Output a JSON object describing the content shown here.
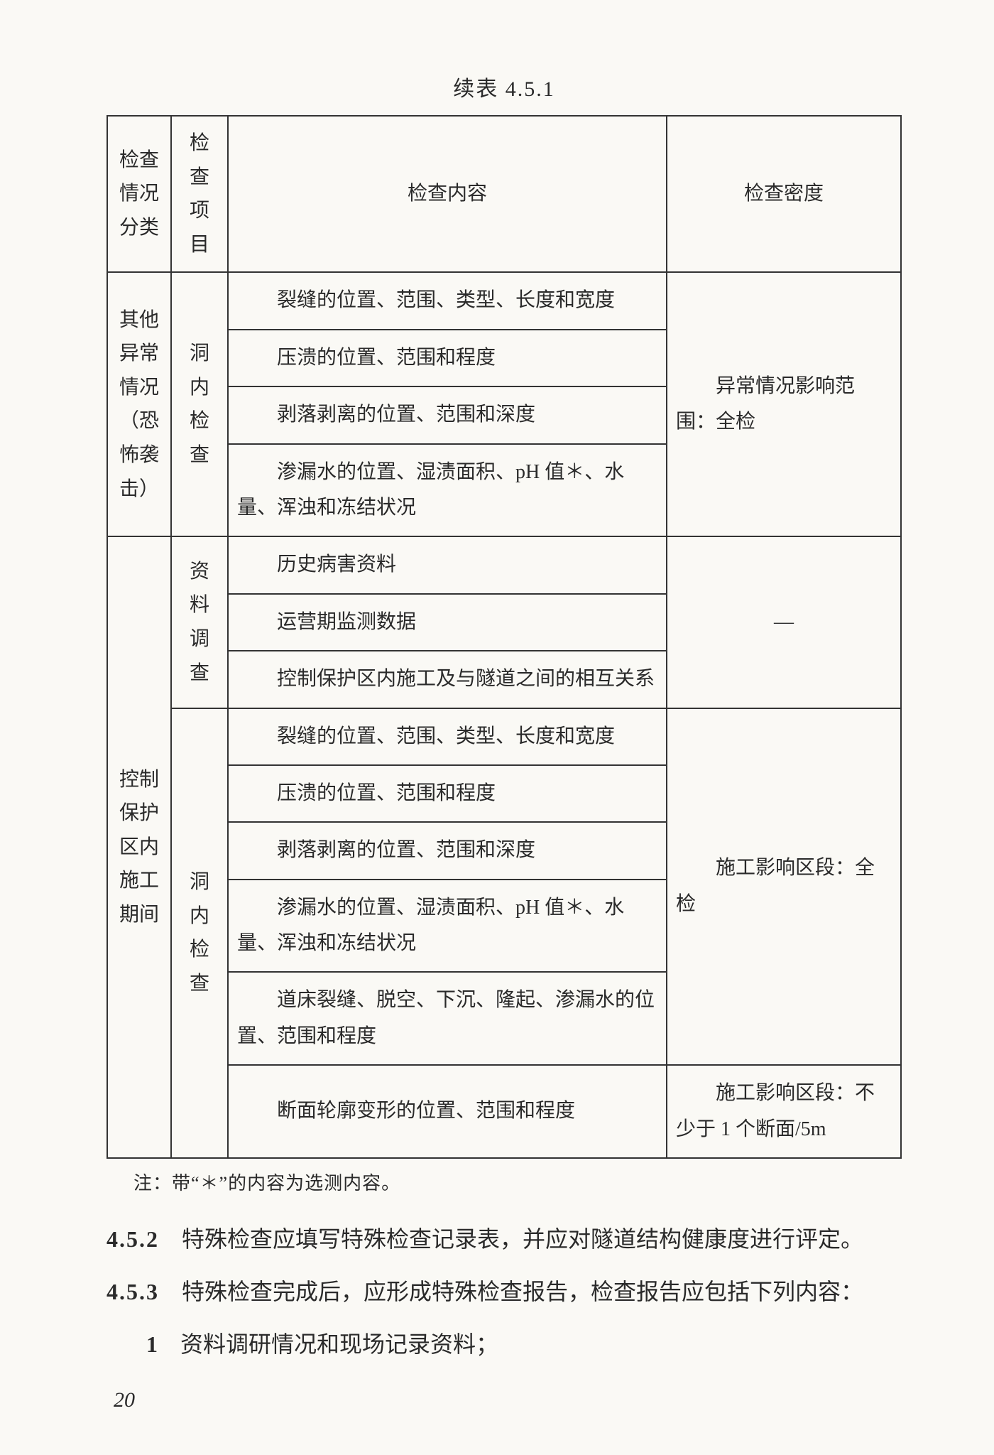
{
  "table": {
    "title": "续表 4.5.1",
    "headers": {
      "c1": "检查情况分类",
      "c2": "检查项目",
      "c3": "检查内容",
      "c4": "检查密度"
    },
    "groupA": {
      "category": "其他异常情况（恐怖袭击）",
      "item": "洞内检查",
      "contents": [
        "裂缝的位置、范围、类型、长度和宽度",
        "压溃的位置、范围和程度",
        "剥落剥离的位置、范围和深度",
        "渗漏水的位置、湿渍面积、pH 值＊、水量、浑浊和冻结状况"
      ],
      "density": "异常情况影响范围：全检"
    },
    "groupB": {
      "category": "控制保护区内施工期间",
      "item1": "资料调查",
      "contents1": [
        "历史病害资料",
        "运营期监测数据",
        "控制保护区内施工及与隧道之间的相互关系"
      ],
      "density1": "—",
      "item2": "洞内检查",
      "contents2": [
        "裂缝的位置、范围、类型、长度和宽度",
        "压溃的位置、范围和程度",
        "剥落剥离的位置、范围和深度",
        "渗漏水的位置、湿渍面积、pH 值＊、水量、浑浊和冻结状况",
        "道床裂缝、脱空、下沉、隆起、渗漏水的位置、范围和程度"
      ],
      "density2": "施工影响区段：全检",
      "content3": "断面轮廓变形的位置、范围和程度",
      "density3": "施工影响区段：不少于 1 个断面/5m"
    }
  },
  "note": "注：带“＊”的内容为选测内容。",
  "sections": {
    "s452_num": "4.5.2",
    "s452_text": "　特殊检查应填写特殊检查记录表，并应对隧道结构健康度进行评定。",
    "s453_num": "4.5.3",
    "s453_text": "　特殊检查完成后，应形成特殊检查报告，检查报告应包括下列内容：",
    "item1_num": "1",
    "item1_text": "资料调研情况和现场记录资料；"
  },
  "page_number": "20"
}
